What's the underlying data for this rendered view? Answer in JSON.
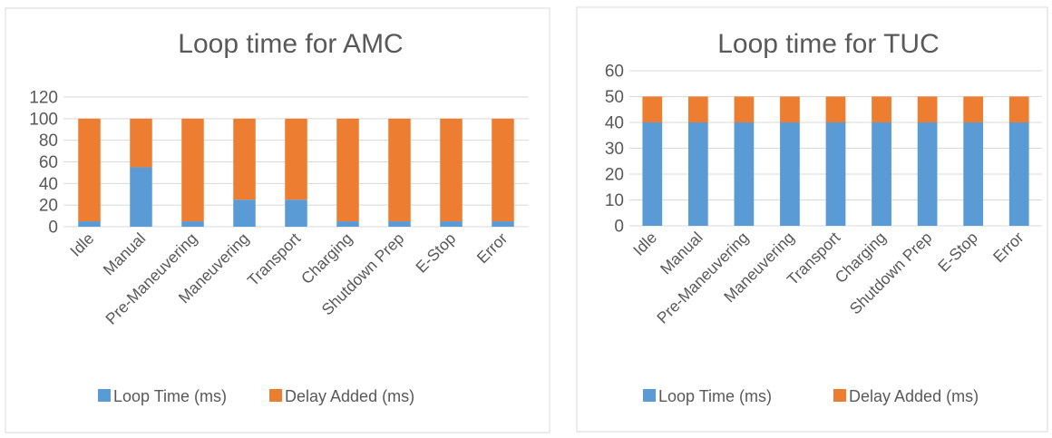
{
  "chart_data": [
    {
      "type": "bar",
      "stacked": true,
      "title": "Loop time for AMC",
      "categories": [
        "Idle",
        "Manual",
        "Pre-Maneuvering",
        "Maneuvering",
        "Transport",
        "Charging",
        "Shutdown Prep",
        "E-Stop",
        "Error"
      ],
      "series": [
        {
          "name": "Loop Time (ms)",
          "color": "#5B9BD5",
          "values": [
            5,
            55,
            5,
            25,
            25,
            5,
            5,
            5,
            5
          ]
        },
        {
          "name": "Delay Added (ms)",
          "color": "#ED7D31",
          "values": [
            95,
            45,
            95,
            75,
            75,
            95,
            95,
            95,
            95
          ]
        }
      ],
      "yticks": [
        "0",
        "20",
        "40",
        "60",
        "80",
        "100",
        "120"
      ],
      "ylim": [
        0,
        120
      ],
      "grid": true,
      "legend": "bottom"
    },
    {
      "type": "bar",
      "stacked": true,
      "title": "Loop time for TUC",
      "categories": [
        "Idle",
        "Manual",
        "Pre-Maneuvering",
        "Maneuvering",
        "Transport",
        "Charging",
        "Shutdown Prep",
        "E-Stop",
        "Error"
      ],
      "series": [
        {
          "name": "Loop Time (ms)",
          "color": "#5B9BD5",
          "values": [
            40,
            40,
            40,
            40,
            40,
            40,
            40,
            40,
            40
          ]
        },
        {
          "name": "Delay Added (ms)",
          "color": "#ED7D31",
          "values": [
            10,
            10,
            10,
            10,
            10,
            10,
            10,
            10,
            10
          ]
        }
      ],
      "yticks": [
        "0",
        "10",
        "20",
        "30",
        "40",
        "50",
        "60"
      ],
      "ylim": [
        0,
        60
      ],
      "grid": true,
      "legend": "bottom"
    }
  ]
}
